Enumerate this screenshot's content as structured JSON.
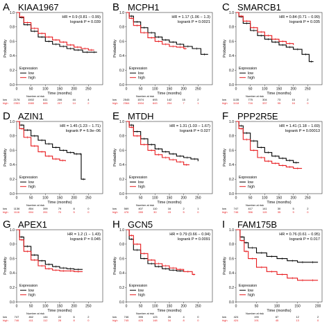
{
  "colors": {
    "low": "#000000",
    "high": "#e8191c"
  },
  "chart_data": [
    {
      "type": "line",
      "panel_letter": "A",
      "title": "KIAA1967",
      "hr_text": "HR = 0.9 (0.81 − 0.99)",
      "p_text": "logrank P = 0.039",
      "xlabel": "Time (months)",
      "ylabel": "Probability",
      "xlim": [
        0,
        300
      ],
      "ylim": [
        0,
        1
      ],
      "xticks": [
        "0",
        "50",
        "100",
        "150",
        "200",
        "250"
      ],
      "yticks": [
        "0.0",
        "0.2",
        "0.4",
        "0.6",
        "0.8",
        "1.0"
      ],
      "legend_title": "Expression",
      "series": [
        {
          "name": "low",
          "x": [
            0,
            10,
            25,
            50,
            75,
            100,
            125,
            150,
            175,
            200,
            230,
            260,
            280
          ],
          "y": [
            1.0,
            0.93,
            0.83,
            0.74,
            0.66,
            0.6,
            0.56,
            0.53,
            0.5,
            0.48,
            0.45,
            0.45,
            0.45
          ]
        },
        {
          "name": "high",
          "x": [
            0,
            10,
            25,
            50,
            75,
            100,
            125,
            150,
            175,
            200,
            225,
            250,
            270
          ],
          "y": [
            1.0,
            0.94,
            0.86,
            0.78,
            0.71,
            0.66,
            0.62,
            0.59,
            0.55,
            0.52,
            0.5,
            0.48,
            0.48
          ]
        }
      ],
      "risk_table": {
        "header": "Number at risk",
        "rows": [
          {
            "name": "low",
            "values": [
              "2176",
              "1502",
              "611",
              "206",
              "44",
              "4"
            ]
          },
          {
            "name": "high",
            "values": [
              "2353",
              "1580",
              "665",
              "207",
              "14",
              "2"
            ]
          }
        ]
      }
    },
    {
      "type": "line",
      "panel_letter": "B",
      "title": "MCPH1",
      "hr_text": "HR = 1.17 (1.06 − 1.3)",
      "p_text": "logrank P = 0.0021",
      "xlabel": "Time (months)",
      "ylabel": "Probability",
      "xlim": [
        0,
        300
      ],
      "ylim": [
        0,
        1
      ],
      "xticks": [
        "0",
        "50",
        "100",
        "150",
        "200",
        "250"
      ],
      "yticks": [
        "0.0",
        "0.2",
        "0.4",
        "0.6",
        "0.8",
        "1.0"
      ],
      "legend_title": "Expression",
      "series": [
        {
          "name": "low",
          "x": [
            0,
            10,
            25,
            50,
            75,
            100,
            125,
            150,
            175,
            200,
            230,
            260,
            285
          ],
          "y": [
            1.0,
            0.95,
            0.87,
            0.79,
            0.72,
            0.66,
            0.62,
            0.59,
            0.56,
            0.53,
            0.5,
            0.42,
            0.42
          ]
        },
        {
          "name": "high",
          "x": [
            0,
            10,
            25,
            50,
            75,
            100,
            125,
            150,
            175,
            200,
            210
          ],
          "y": [
            1.0,
            0.92,
            0.82,
            0.72,
            0.65,
            0.6,
            0.56,
            0.53,
            0.52,
            0.5,
            0.5
          ]
        }
      ],
      "risk_table": {
        "header": "Number at risk",
        "rows": [
          {
            "name": "low",
            "values": [
              "2545",
              "1574",
              "693",
              "142",
              "15",
              "2"
            ]
          },
          {
            "name": "high",
            "values": [
              "2364",
              "1504",
              "643",
              "204",
              "7",
              "1"
            ]
          }
        ]
      }
    },
    {
      "type": "line",
      "panel_letter": "C",
      "title": "SMARCB1",
      "hr_text": "HR = 0.84 (0.71 − 0.99)",
      "p_text": "logrank P = 0.035",
      "xlabel": "Time (months)",
      "ylabel": "Probability",
      "xlim": [
        0,
        300
      ],
      "ylim": [
        0,
        1
      ],
      "xticks": [
        "0",
        "50",
        "100",
        "150",
        "200",
        "250"
      ],
      "yticks": [
        "0.0",
        "0.2",
        "0.4",
        "0.6",
        "0.8",
        "1.0"
      ],
      "legend_title": "Expression",
      "series": [
        {
          "name": "low",
          "x": [
            0,
            10,
            25,
            50,
            75,
            100,
            125,
            150,
            175,
            200,
            230,
            255,
            270
          ],
          "y": [
            1.0,
            0.94,
            0.85,
            0.75,
            0.68,
            0.63,
            0.59,
            0.55,
            0.52,
            0.49,
            0.42,
            0.32,
            0.32
          ]
        },
        {
          "name": "high",
          "x": [
            0,
            10,
            25,
            50,
            75,
            100,
            125,
            150,
            175,
            200
          ],
          "y": [
            1.0,
            0.95,
            0.88,
            0.79,
            0.73,
            0.68,
            0.63,
            0.6,
            0.57,
            0.55
          ]
        }
      ],
      "risk_table": {
        "header": "Number at risk",
        "rows": [
          {
            "name": "low",
            "values": [
              "1135",
              "775",
              "304",
              "73",
              "15",
              "2"
            ]
          },
          {
            "name": "high",
            "values": [
              "1118",
              "716",
              "337",
              "95",
              "16",
              "0"
            ]
          }
        ]
      }
    },
    {
      "type": "line",
      "panel_letter": "D",
      "title": "AZIN1",
      "hr_text": "HR = 1.45 (1.23 − 1.71)",
      "p_text": "logrank P = 6.9e−06",
      "xlabel": "Time (months)",
      "ylabel": "Probability",
      "xlim": [
        0,
        300
      ],
      "ylim": [
        0,
        1
      ],
      "xticks": [
        "0",
        "50",
        "100",
        "150",
        "200",
        "250"
      ],
      "yticks": [
        "0.0",
        "0.2",
        "0.4",
        "0.6",
        "0.8",
        "1.0"
      ],
      "legend_title": "Expression",
      "series": [
        {
          "name": "low",
          "x": [
            0,
            10,
            25,
            50,
            75,
            100,
            125,
            150,
            175,
            200,
            220,
            225,
            240
          ],
          "y": [
            1.0,
            0.95,
            0.88,
            0.8,
            0.74,
            0.69,
            0.64,
            0.6,
            0.57,
            0.55,
            0.55,
            0.2,
            0.2
          ]
        },
        {
          "name": "high",
          "x": [
            0,
            10,
            25,
            50,
            75,
            100,
            125,
            150,
            170
          ],
          "y": [
            1.0,
            0.9,
            0.78,
            0.66,
            0.58,
            0.52,
            0.48,
            0.46,
            0.45
          ]
        }
      ],
      "risk_table": {
        "header": "Number at risk",
        "rows": [
          {
            "name": "low",
            "values": [
              "1136",
              "854",
              "399",
              "79",
              "8",
              "0"
            ]
          },
          {
            "name": "high",
            "values": [
              "1116",
              "694",
              "261",
              "70",
              "5",
              "0"
            ]
          }
        ]
      }
    },
    {
      "type": "line",
      "panel_letter": "E",
      "title": "MTDH",
      "hr_text": "HR = 1.31 (1.03 − 1.67)",
      "p_text": "logrank P = 0.027",
      "xlabel": "Time (months)",
      "ylabel": "Probability",
      "xlim": [
        0,
        300
      ],
      "ylim": [
        0,
        1
      ],
      "xticks": [
        "0",
        "50",
        "100",
        "150",
        "200",
        "250"
      ],
      "yticks": [
        "0.0",
        "0.2",
        "0.4",
        "0.6",
        "0.8",
        "1.0"
      ],
      "legend_title": "Expression",
      "series": [
        {
          "name": "low",
          "x": [
            0,
            10,
            25,
            50,
            75,
            100,
            125,
            150,
            175,
            200,
            225,
            250
          ],
          "y": [
            1.0,
            0.95,
            0.86,
            0.76,
            0.68,
            0.62,
            0.58,
            0.55,
            0.52,
            0.5,
            0.48,
            0.45
          ]
        },
        {
          "name": "high",
          "x": [
            0,
            10,
            25,
            50,
            75,
            100,
            125,
            150,
            175,
            200,
            220
          ],
          "y": [
            1.0,
            0.92,
            0.8,
            0.68,
            0.6,
            0.54,
            0.5,
            0.47,
            0.44,
            0.4,
            0.4
          ]
        }
      ],
      "risk_table": {
        "header": "Number at risk",
        "rows": [
          {
            "name": "low",
            "values": [
              "569",
              "407",
              "110",
              "16",
              "2",
              "1"
            ]
          },
          {
            "name": "high",
            "values": [
              "476",
              "285",
              "30",
              "15",
              "5",
              "0"
            ]
          }
        ]
      }
    },
    {
      "type": "line",
      "panel_letter": "F",
      "title": "PPP2R5E",
      "hr_text": "HR = 1.41 (1.18 − 1.69)",
      "p_text": "logrank P = 0.00013",
      "xlabel": "Time (months)",
      "ylabel": "Probability",
      "xlim": [
        0,
        300
      ],
      "ylim": [
        0,
        1
      ],
      "xticks": [
        "0",
        "50",
        "100",
        "150",
        "200",
        "250"
      ],
      "yticks": [
        "0.0",
        "0.2",
        "0.4",
        "0.6",
        "0.8",
        "1.0"
      ],
      "legend_title": "Expression",
      "series": [
        {
          "name": "low",
          "x": [
            0,
            10,
            25,
            50,
            75,
            100,
            125,
            150,
            175,
            200,
            220
          ],
          "y": [
            1.0,
            0.94,
            0.84,
            0.73,
            0.64,
            0.57,
            0.52,
            0.49,
            0.46,
            0.43,
            0.43
          ]
        },
        {
          "name": "high",
          "x": [
            0,
            10,
            25,
            50,
            75,
            100,
            125,
            150,
            175,
            200,
            230
          ],
          "y": [
            1.0,
            0.9,
            0.75,
            0.6,
            0.5,
            0.45,
            0.42,
            0.39,
            0.37,
            0.35,
            0.35
          ]
        }
      ],
      "risk_table": {
        "header": "Number at risk",
        "rows": [
          {
            "name": "low",
            "values": [
              "747",
              "417",
              "141",
              "30",
              "5",
              "2"
            ]
          },
          {
            "name": "high",
            "values": [
              "746",
              "356",
              "115",
              "35",
              "9",
              "0"
            ]
          }
        ]
      }
    },
    {
      "type": "line",
      "panel_letter": "G",
      "title": "APEX1",
      "hr_text": "HR = 1.2 (1 − 1.43)",
      "p_text": "logrank P = 0.045",
      "xlabel": "Time (months)",
      "ylabel": "Probability",
      "xlim": [
        0,
        300
      ],
      "ylim": [
        0,
        1
      ],
      "xticks": [
        "0",
        "50",
        "100",
        "150",
        "200",
        "250"
      ],
      "yticks": [
        "0.0",
        "0.2",
        "0.4",
        "0.6",
        "0.8",
        "1.0"
      ],
      "legend_title": "Expression",
      "series": [
        {
          "name": "low",
          "x": [
            0,
            10,
            25,
            50,
            75,
            100,
            125,
            150,
            175,
            200,
            230
          ],
          "y": [
            1.0,
            0.9,
            0.77,
            0.65,
            0.57,
            0.52,
            0.49,
            0.47,
            0.46,
            0.45,
            0.45
          ]
        },
        {
          "name": "high",
          "x": [
            0,
            10,
            25,
            50,
            75,
            100,
            125,
            150,
            175,
            200,
            230
          ],
          "y": [
            1.0,
            0.86,
            0.7,
            0.58,
            0.5,
            0.46,
            0.44,
            0.43,
            0.43,
            0.42,
            0.42
          ]
        }
      ],
      "risk_table": {
        "header": "Number at risk",
        "rows": [
          {
            "name": "low",
            "values": [
              "747",
              "462",
              "144",
              "22",
              "6",
              "2"
            ]
          },
          {
            "name": "high",
            "values": [
              "746",
              "411",
              "112",
              "28",
              "8",
              "0"
            ]
          }
        ]
      }
    },
    {
      "type": "line",
      "panel_letter": "H",
      "title": "GCN5",
      "hr_text": "HR = 0.79 (0.66 − 0.94)",
      "p_text": "logrank P = 0.0091",
      "xlabel": "Time (months)",
      "ylabel": "Probability",
      "xlim": [
        0,
        300
      ],
      "ylim": [
        0,
        1
      ],
      "xticks": [
        "0",
        "50",
        "100",
        "150",
        "200",
        "250"
      ],
      "yticks": [
        "0.0",
        "0.2",
        "0.4",
        "0.6",
        "0.8",
        "1.0"
      ],
      "legend_title": "Expression",
      "series": [
        {
          "name": "low",
          "x": [
            0,
            10,
            25,
            50,
            75,
            100,
            125,
            150,
            175,
            200
          ],
          "y": [
            1.0,
            0.87,
            0.72,
            0.6,
            0.53,
            0.49,
            0.46,
            0.44,
            0.43,
            0.43
          ]
        },
        {
          "name": "high",
          "x": [
            0,
            10,
            25,
            50,
            75,
            100,
            125,
            150,
            175,
            200,
            230,
            240
          ],
          "y": [
            1.0,
            0.92,
            0.8,
            0.67,
            0.58,
            0.53,
            0.5,
            0.47,
            0.45,
            0.42,
            0.38,
            0.38
          ]
        }
      ],
      "risk_table": {
        "header": "Number at risk",
        "rows": [
          {
            "name": "low",
            "values": [
              "746",
              "395",
              "123",
              "26",
              "4",
              "0"
            ]
          },
          {
            "name": "high",
            "values": [
              "745",
              "425",
              "148",
              "34",
              "8",
              "0"
            ]
          }
        ]
      }
    },
    {
      "type": "line",
      "panel_letter": "I",
      "title": "FAM175B",
      "hr_text": "HR = 0.76 (0.61 − 0.95)",
      "p_text": "logrank P = 0.017",
      "xlabel": "Time (months)",
      "ylabel": "Probability",
      "xlim": [
        0,
        210
      ],
      "ylim": [
        0,
        1
      ],
      "xticks": [
        "0",
        "50",
        "100",
        "150",
        "200"
      ],
      "yticks": [
        "0.0",
        "0.2",
        "0.4",
        "0.6",
        "0.8",
        "1.0"
      ],
      "legend_title": "Expression",
      "series": [
        {
          "name": "low",
          "x": [
            0,
            10,
            20,
            30,
            50,
            75,
            100,
            125,
            150,
            175,
            200
          ],
          "y": [
            1.0,
            0.9,
            0.82,
            0.75,
            0.68,
            0.63,
            0.6,
            0.57,
            0.55,
            0.55,
            0.55
          ]
        },
        {
          "name": "high",
          "x": [
            0,
            10,
            20,
            30,
            50,
            75,
            100,
            125,
            150,
            175,
            200
          ],
          "y": [
            1.0,
            0.85,
            0.7,
            0.6,
            0.48,
            0.42,
            0.38,
            0.33,
            0.3,
            0.3,
            0.3
          ]
        }
      ],
      "risk_table": {
        "header": "Number at risk",
        "rows": [
          {
            "name": "low",
            "values": [
              "424",
              "190",
              "67",
              "12",
              "2"
            ]
          },
          {
            "name": "high",
            "values": [
              "424",
              "191",
              "45",
              "13",
              "0"
            ]
          }
        ]
      }
    }
  ]
}
